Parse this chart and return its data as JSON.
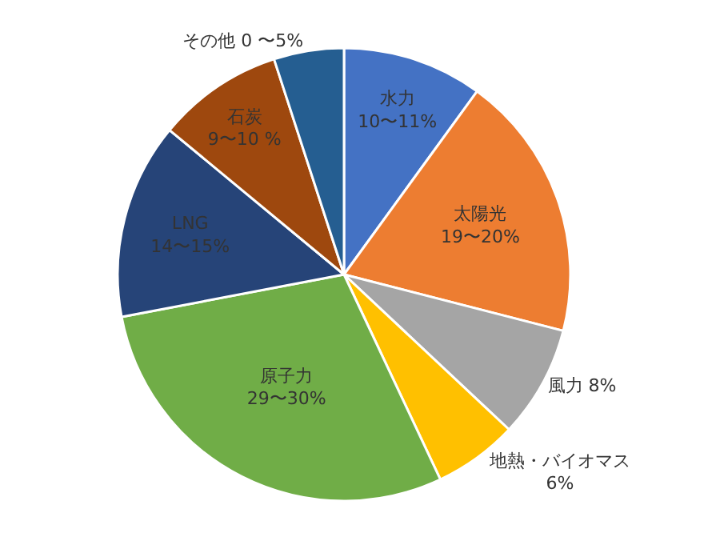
{
  "chart_data": {
    "type": "pie",
    "categories": [
      "水力",
      "太陽光",
      "風力",
      "地熱・バイオマス",
      "原子力",
      "LNG",
      "石炭",
      "その他"
    ],
    "values": [
      10,
      19,
      8,
      6,
      29,
      14,
      9,
      5
    ],
    "colors": [
      "#4472c4",
      "#ed7d31",
      "#a5a5a5",
      "#ffc000",
      "#70ad47",
      "#264478",
      "#9e480e",
      "#255e91"
    ],
    "value_labels": [
      "10〜11%",
      "19〜20%",
      "8%",
      "6%",
      "29〜30%",
      "14〜15%",
      "9〜10 %",
      "0 〜5%"
    ],
    "legend": false
  }
}
